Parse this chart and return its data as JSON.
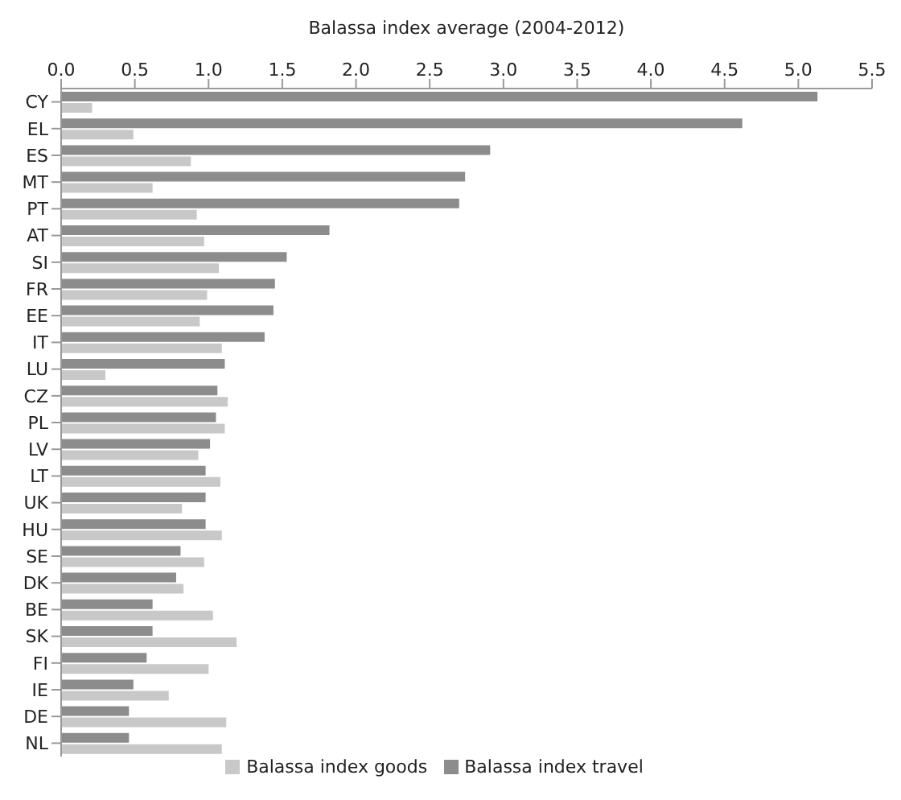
{
  "chart_data": {
    "type": "bar",
    "orientation": "horizontal",
    "xlabel": "Balassa index average (2004-2012)",
    "categories": [
      "CY",
      "EL",
      "ES",
      "MT",
      "PT",
      "AT",
      "SI",
      "FR",
      "EE",
      "IT",
      "LU",
      "CZ",
      "PL",
      "LV",
      "LT",
      "UK",
      "HU",
      "SE",
      "DK",
      "BE",
      "SK",
      "FI",
      "IE",
      "DE",
      "NL"
    ],
    "series": [
      {
        "name": "Balassa index travel",
        "color": "#8c8c8c",
        "values": [
          5.13,
          4.62,
          2.91,
          2.74,
          2.7,
          1.82,
          1.53,
          1.45,
          1.44,
          1.38,
          1.11,
          1.06,
          1.05,
          1.01,
          0.98,
          0.98,
          0.98,
          0.81,
          0.78,
          0.62,
          0.62,
          0.58,
          0.49,
          0.46,
          0.46
        ]
      },
      {
        "name": "Balassa index goods",
        "color": "#c8c8c8",
        "values": [
          0.21,
          0.49,
          0.88,
          0.62,
          0.92,
          0.97,
          1.07,
          0.99,
          0.94,
          1.09,
          0.3,
          1.13,
          1.11,
          0.93,
          1.08,
          0.82,
          1.09,
          0.97,
          0.83,
          1.03,
          1.19,
          1.0,
          0.73,
          1.12,
          1.09
        ]
      }
    ],
    "xlim": [
      0,
      5.5
    ],
    "xticks": [
      {
        "value": 0,
        "label": "0.0"
      },
      {
        "value": 0.5,
        "label": "0.5"
      },
      {
        "value": 1,
        "label": "1.0"
      },
      {
        "value": 1.5,
        "label": "1.5"
      },
      {
        "value": 2,
        "label": "2.0"
      },
      {
        "value": 2.5,
        "label": "2.5"
      },
      {
        "value": 3,
        "label": "3.0"
      },
      {
        "value": 3.5,
        "label": "3.5"
      },
      {
        "value": 4,
        "label": "4.0"
      },
      {
        "value": 4.5,
        "label": "4.5"
      },
      {
        "value": 5,
        "label": "5.0"
      },
      {
        "value": 5.5,
        "label": "5.5"
      }
    ],
    "grid": false,
    "legend": "bottom"
  }
}
